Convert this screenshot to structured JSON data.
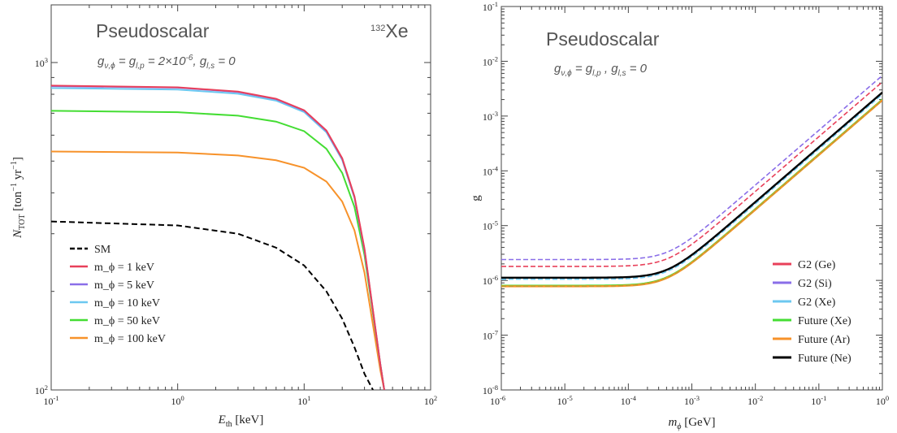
{
  "chart_data": [
    {
      "type": "line",
      "title": "Pseudoscalar",
      "annotation": "g_{ν,ϕ} = g_{l,p} = 2×10^{-6}, g_{l,s} = 0",
      "corner_label": "132Xe",
      "xlabel": "E_th [keV]",
      "ylabel": "N_TOT [ton^-1 yr^-1]",
      "xscale": "log",
      "yscale": "log",
      "xlim": [
        0.1,
        100
      ],
      "ylim": [
        100,
        1500
      ],
      "x_ticks": [
        "10^-1",
        "10^0",
        "10^1",
        "10^2"
      ],
      "y_ticks": [
        "10^2",
        "10^3"
      ],
      "legend_position": "bottom-left",
      "series": [
        {
          "name": "SM",
          "color": "#000000",
          "dash": true,
          "x": [
            0.1,
            1,
            3,
            6,
            10,
            15,
            20,
            25,
            30,
            35
          ],
          "y": [
            327,
            318,
            300,
            272,
            240,
            200,
            165,
            135,
            112,
            100
          ]
        },
        {
          "name": "m_ϕ = 1 keV",
          "color": "#e8405a",
          "dash": false,
          "x": [
            0.1,
            1,
            3,
            6,
            10,
            15,
            20,
            25,
            30,
            35,
            40,
            43
          ],
          "y": [
            850,
            840,
            815,
            775,
            715,
            620,
            510,
            390,
            270,
            175,
            120,
            100
          ]
        },
        {
          "name": "m_ϕ = 5 keV",
          "color": "#8a6ee8",
          "dash": false,
          "x": [
            0.1,
            1,
            3,
            6,
            10,
            15,
            20,
            25,
            30,
            35,
            40,
            43
          ],
          "y": [
            847,
            838,
            813,
            773,
            713,
            618,
            508,
            388,
            268,
            174,
            120,
            100
          ]
        },
        {
          "name": "m_ϕ = 10 keV",
          "color": "#6cc8f0",
          "dash": false,
          "x": [
            0.1,
            1,
            3,
            6,
            10,
            15,
            20,
            25,
            30,
            35,
            40,
            43
          ],
          "y": [
            836,
            827,
            803,
            765,
            706,
            612,
            504,
            386,
            267,
            174,
            120,
            100
          ]
        },
        {
          "name": "m_ϕ = 50 keV",
          "color": "#44dd33",
          "dash": false,
          "x": [
            0.1,
            1,
            3,
            6,
            10,
            15,
            20,
            25,
            30,
            35,
            40,
            43
          ],
          "y": [
            712,
            705,
            688,
            660,
            617,
            545,
            460,
            362,
            258,
            171,
            120,
            100
          ]
        },
        {
          "name": "m_ϕ = 100 keV",
          "color": "#f7922a",
          "dash": false,
          "x": [
            0.1,
            1,
            3,
            6,
            10,
            15,
            20,
            25,
            30,
            35,
            40,
            43
          ],
          "y": [
            535,
            531,
            520,
            503,
            477,
            433,
            376,
            307,
            228,
            158,
            115,
            100
          ]
        }
      ]
    },
    {
      "type": "line",
      "title": "Pseudoscalar",
      "annotation": "g_{ν,ϕ} = g_{l,p} , g_{l,s} = 0",
      "xlabel": "m_ϕ [GeV]",
      "ylabel": "g",
      "xscale": "log",
      "yscale": "log",
      "xlim": [
        1e-06,
        1
      ],
      "ylim": [
        1e-08,
        0.1
      ],
      "x_ticks": [
        "10^-6",
        "10^-5",
        "10^-4",
        "10^-3",
        "10^-2",
        "10^-1",
        "10^0"
      ],
      "y_ticks": [
        "10^-8",
        "10^-7",
        "10^-6",
        "10^-5",
        "10^-4",
        "10^-3",
        "10^-2",
        "10^-1"
      ],
      "legend_position": "bottom-right",
      "series": [
        {
          "name": "G2 (Ge)",
          "color": "#e8405a",
          "g0": 1.8e-06,
          "g_at_1GeV": 0.0042
        },
        {
          "name": "G2 (Si)",
          "color": "#8a6ee8",
          "g0": 2.4e-06,
          "g_at_1GeV": 0.0055
        },
        {
          "name": "G2 (Xe)",
          "color": "#6cc8f0",
          "g0": 1.05e-06,
          "g_at_1GeV": 0.0025
        },
        {
          "name": "Future (Xe)",
          "color": "#44dd33",
          "g0": 8e-07,
          "g_at_1GeV": 0.002
        },
        {
          "name": "Future (Ar)",
          "color": "#f7922a",
          "g0": 7.8e-07,
          "g_at_1GeV": 0.00195
        },
        {
          "name": "Future (Ne)",
          "color": "#000000",
          "g0": 1.12e-06,
          "g_at_1GeV": 0.0027
        }
      ]
    }
  ]
}
